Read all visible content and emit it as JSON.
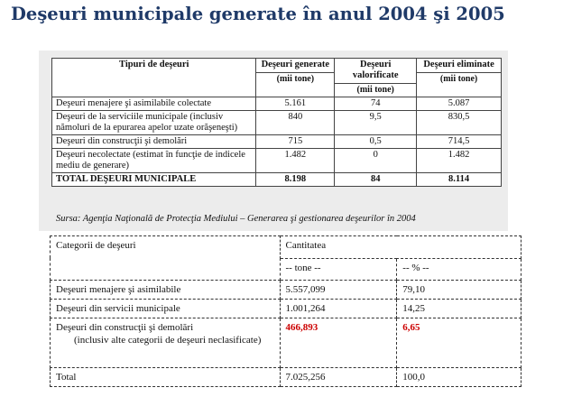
{
  "title": "Deşeuri municipale generate în anul 2004 şi 2005",
  "table1": {
    "headers": {
      "type": "Tipuri de deşeuri",
      "generated": "Deşeuri generate",
      "recovered": "Deşeuri valorificate",
      "eliminated": "Deşeuri eliminate",
      "unit": "(mii tone)"
    },
    "rows": [
      {
        "type": "Deşeuri menajere şi asimilabile colectate",
        "generated": "5.161",
        "recovered": "74",
        "eliminated": "5.087"
      },
      {
        "type": "Deşeuri de la serviciile municipale (inclusiv nămoluri de la epurarea apelor uzate orăşeneşti)",
        "generated": "840",
        "recovered": "9,5",
        "eliminated": "830,5"
      },
      {
        "type": "Deşeuri din construcţii şi demolări",
        "generated": "715",
        "recovered": "0,5",
        "eliminated": "714,5"
      },
      {
        "type": "Deşeuri necolectate (estimat în funcţie de indicele mediu de generare)",
        "generated": "1.482",
        "recovered": "0",
        "eliminated": "1.482"
      },
      {
        "type": "TOTAL DEŞEURI MUNICIPALE",
        "generated": "8.198",
        "recovered": "84",
        "eliminated": "8.114"
      }
    ],
    "source": "Sursa: Agenţia Naţională de Protecţia Mediului – Generarea şi gestionarea deşeurilor în 2004"
  },
  "table2": {
    "header_category": "Categorii de deşeuri",
    "header_quantity": "Cantitatea",
    "unit_tone": "-- tone --",
    "unit_pct": "-- % --",
    "rows": [
      {
        "category": "Deşeuri menajere şi asimilabile",
        "tone": "5.557,099",
        "pct": "79,10"
      },
      {
        "category": "Deşeuri din servicii municipale",
        "tone": "1.001,264",
        "pct": "14,25"
      },
      {
        "category": "Deşeuri din construcţii şi demolări",
        "note": "(inclusiv alte categorii de deşeuri neclasificate)",
        "tone": "466,893",
        "pct": "6,65"
      },
      {
        "category": "Total",
        "tone": "7.025,256",
        "pct": "100,0"
      }
    ]
  }
}
